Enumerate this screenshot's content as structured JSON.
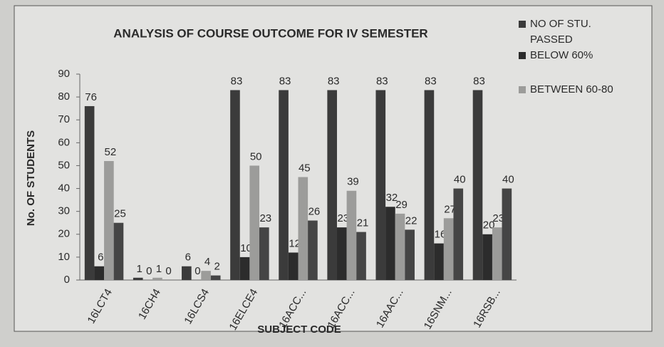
{
  "chart_data": {
    "type": "bar",
    "title": "ANALYSIS OF COURSE OUTCOME FOR IV SEMESTER",
    "x_label": "SUBJECT CODE",
    "y_label": "No. OF  STUDENTS",
    "categories": [
      "16LCT4",
      "16CH4",
      "16LCS4",
      "16ELCE4",
      "16ACC...",
      "16ACC...",
      "16AAC...",
      "16SNM...",
      "16RSB..."
    ],
    "series": [
      {
        "name": "NO OF STU. PASSED",
        "color": "#3b3b3b",
        "values": [
          76,
          1,
          6,
          83,
          83,
          83,
          83,
          83,
          83
        ]
      },
      {
        "name": "BELOW 60%",
        "color": "#2c2c2c",
        "values": [
          6,
          0,
          0,
          10,
          12,
          23,
          32,
          16,
          20
        ]
      },
      {
        "name": "BETWEEN 60-80",
        "color": "#9c9c9a",
        "values": [
          52,
          1,
          4,
          50,
          45,
          39,
          29,
          27,
          23
        ]
      },
      {
        "color": "#454545",
        "values": [
          25,
          0,
          2,
          23,
          26,
          21,
          22,
          40,
          40
        ]
      }
    ],
    "ylim": [
      0,
      90
    ],
    "yticks": [
      0,
      10,
      20,
      30,
      40,
      50,
      60,
      70,
      80,
      90
    ],
    "grid": false,
    "legend": "right"
  }
}
